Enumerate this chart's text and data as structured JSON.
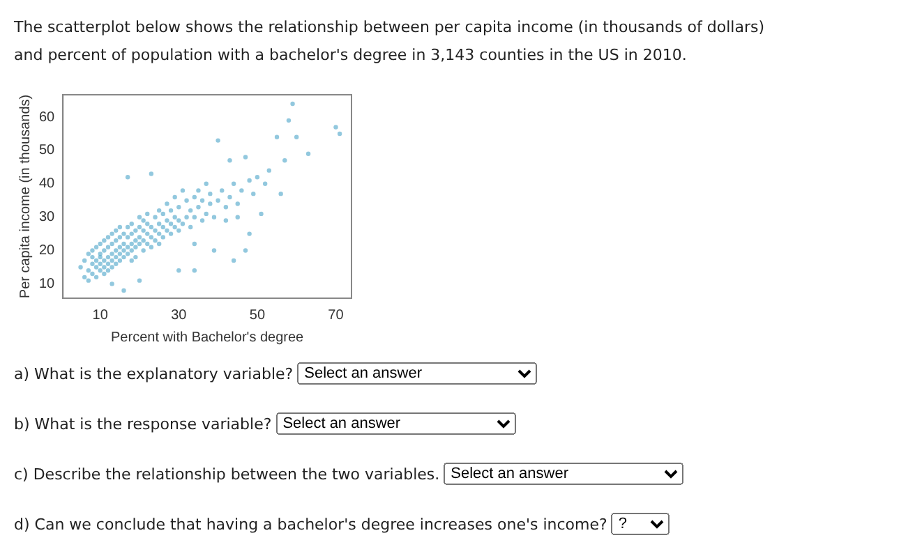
{
  "chart_data": {
    "type": "scatter",
    "title": "The scatterplot below shows the relationship between per capita income (in thousands of dollars) and percent of population with a bachelor's degree in 3,143 counties in the US in 2010.",
    "xlabel": "Percent with Bachelor's degree",
    "ylabel": "Per capita income (in thousands)",
    "xlim": [
      0.5,
      74
    ],
    "xticks": [
      10,
      30,
      50,
      70
    ],
    "ylim": [
      5.7,
      66.7
    ],
    "yticks": [
      10,
      20,
      30,
      40,
      50,
      60
    ],
    "grid": false,
    "legend": false,
    "marker": "circle",
    "annotations": [
      "a) What is the explanatory variable?",
      "Select an answer",
      "b) What is the response variable?",
      "Select an answer",
      "c) Describe the relationship between the two variables.",
      "Select an answer",
      "d) Can we conclude that having a bachelor's degree increases one's income?",
      "?"
    ],
    "series": [
      {
        "color": "#4aa3c8",
        "x": [
          5,
          6,
          6,
          7,
          7,
          7,
          8,
          8,
          8,
          8,
          9,
          9,
          9,
          9,
          10,
          10,
          10,
          10,
          10,
          11,
          11,
          11,
          11,
          11,
          12,
          12,
          12,
          12,
          12,
          13,
          13,
          13,
          13,
          13,
          14,
          14,
          14,
          14,
          14,
          15,
          15,
          15,
          15,
          15,
          16,
          16,
          16,
          16,
          16,
          17,
          17,
          17,
          17,
          17,
          18,
          18,
          18,
          18,
          18,
          19,
          19,
          19,
          19,
          20,
          20,
          20,
          20,
          21,
          21,
          21,
          21,
          22,
          22,
          22,
          22,
          23,
          23,
          23,
          23,
          24,
          24,
          24,
          25,
          25,
          25,
          25,
          26,
          26,
          26,
          27,
          27,
          27,
          28,
          28,
          28,
          29,
          29,
          29,
          30,
          30,
          30,
          31,
          31,
          32,
          32,
          33,
          33,
          34,
          34,
          34,
          35,
          35,
          36,
          36,
          37,
          37,
          38,
          38,
          39,
          39,
          40,
          40,
          41,
          42,
          42,
          43,
          43,
          44,
          45,
          45,
          46,
          47,
          48,
          48,
          49,
          50,
          51,
          52,
          53,
          55,
          56,
          57,
          58,
          60,
          59,
          63,
          70,
          71,
          34,
          44,
          47,
          30,
          13,
          20
        ],
        "values": [
          15,
          12,
          17,
          14,
          19,
          11,
          13,
          16,
          20,
          18,
          15,
          17,
          21,
          12,
          14,
          16,
          19,
          22,
          18,
          15,
          17,
          20,
          23,
          13,
          16,
          18,
          21,
          24,
          14,
          17,
          19,
          22,
          25,
          15,
          18,
          20,
          23,
          16,
          26,
          19,
          21,
          24,
          17,
          27,
          18,
          20,
          22,
          25,
          8,
          19,
          21,
          24,
          27,
          42,
          20,
          22,
          25,
          28,
          17,
          21,
          23,
          26,
          18,
          22,
          24,
          27,
          30,
          20,
          23,
          26,
          29,
          22,
          25,
          28,
          31,
          21,
          24,
          27,
          43,
          23,
          26,
          30,
          25,
          28,
          32,
          22,
          24,
          27,
          31,
          26,
          29,
          34,
          25,
          28,
          32,
          27,
          30,
          36,
          26,
          29,
          33,
          28,
          38,
          30,
          35,
          27,
          32,
          22,
          30,
          36,
          33,
          38,
          29,
          35,
          31,
          40,
          34,
          37,
          20,
          30,
          35,
          53,
          38,
          33,
          29,
          36,
          47,
          40,
          30,
          34,
          38,
          48,
          25,
          41,
          37,
          42,
          31,
          40,
          44,
          54,
          37,
          47,
          59,
          54,
          64,
          49,
          57,
          55,
          14,
          17,
          20,
          14,
          10,
          11
        ]
      }
    ]
  }
}
